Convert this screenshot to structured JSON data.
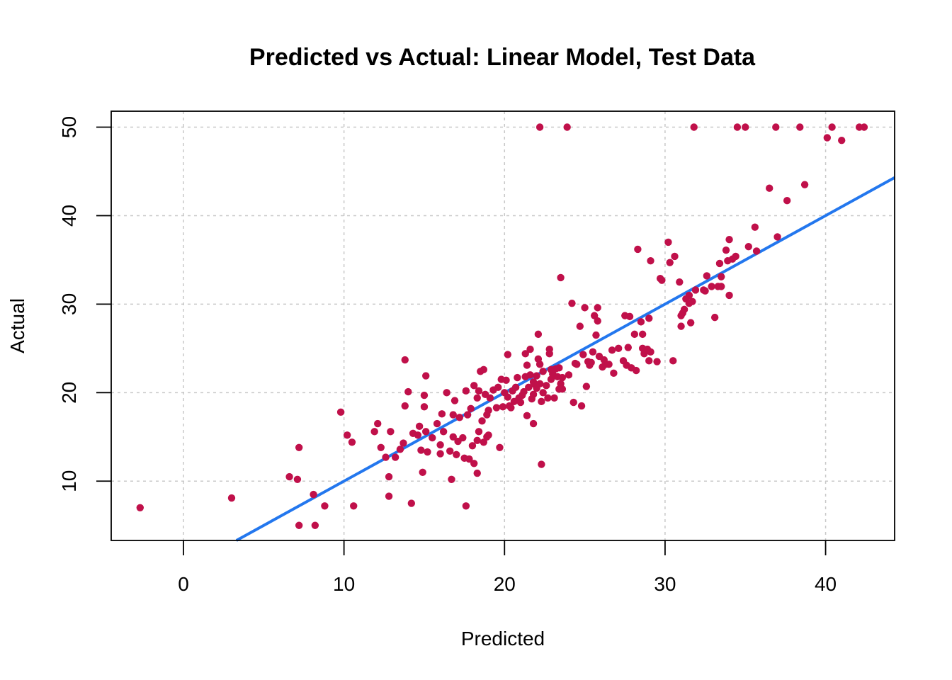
{
  "chart_data": {
    "type": "scatter",
    "title": "Predicted vs Actual: Linear Model, Test Data",
    "xlabel": "Predicted",
    "ylabel": "Actual",
    "xlim": [
      -4.5,
      44.3
    ],
    "ylim": [
      3.3,
      51.8
    ],
    "x_ticks": [
      0,
      10,
      20,
      30,
      40
    ],
    "y_ticks": [
      10,
      20,
      30,
      40,
      50
    ],
    "x_tick_labels": [
      "0",
      "10",
      "20",
      "30",
      "40"
    ],
    "y_tick_labels": [
      "10",
      "20",
      "30",
      "40",
      "50"
    ],
    "grid": true,
    "point_color": "#C0104A",
    "line_color": "#2377EE",
    "reference_line": {
      "slope": 1,
      "intercept": 0
    },
    "points": [
      [
        -2.7,
        7.0
      ],
      [
        3.0,
        8.1
      ],
      [
        6.6,
        10.5
      ],
      [
        7.1,
        10.2
      ],
      [
        7.2,
        13.8
      ],
      [
        7.2,
        5.0
      ],
      [
        8.1,
        8.5
      ],
      [
        8.2,
        5.0
      ],
      [
        8.8,
        7.2
      ],
      [
        9.8,
        17.8
      ],
      [
        10.2,
        15.2
      ],
      [
        10.5,
        14.4
      ],
      [
        10.6,
        7.2
      ],
      [
        11.9,
        15.6
      ],
      [
        12.1,
        16.5
      ],
      [
        12.3,
        13.8
      ],
      [
        12.6,
        12.7
      ],
      [
        12.8,
        10.5
      ],
      [
        12.8,
        8.3
      ],
      [
        12.9,
        15.6
      ],
      [
        13.2,
        12.7
      ],
      [
        13.5,
        13.6
      ],
      [
        13.7,
        14.3
      ],
      [
        13.8,
        18.5
      ],
      [
        13.8,
        23.7
      ],
      [
        14.0,
        20.1
      ],
      [
        14.2,
        7.5
      ],
      [
        14.3,
        15.4
      ],
      [
        14.6,
        15.2
      ],
      [
        14.7,
        16.2
      ],
      [
        14.8,
        13.5
      ],
      [
        14.9,
        11.0
      ],
      [
        15.0,
        18.4
      ],
      [
        15.0,
        19.7
      ],
      [
        15.1,
        21.9
      ],
      [
        15.1,
        15.6
      ],
      [
        15.2,
        13.3
      ],
      [
        15.5,
        14.9
      ],
      [
        15.8,
        16.5
      ],
      [
        16.0,
        13.1
      ],
      [
        16.0,
        14.1
      ],
      [
        16.1,
        17.6
      ],
      [
        16.2,
        15.6
      ],
      [
        16.4,
        20.0
      ],
      [
        16.6,
        13.4
      ],
      [
        16.7,
        10.2
      ],
      [
        16.8,
        15.0
      ],
      [
        16.8,
        17.5
      ],
      [
        16.9,
        19.1
      ],
      [
        17.0,
        13.0
      ],
      [
        17.1,
        14.5
      ],
      [
        17.2,
        17.2
      ],
      [
        17.4,
        14.9
      ],
      [
        17.5,
        12.6
      ],
      [
        17.6,
        20.2
      ],
      [
        17.6,
        7.2
      ],
      [
        17.7,
        17.5
      ],
      [
        17.8,
        12.5
      ],
      [
        17.9,
        18.2
      ],
      [
        18.0,
        14.0
      ],
      [
        18.1,
        12.0
      ],
      [
        18.1,
        20.8
      ],
      [
        18.3,
        19.4
      ],
      [
        18.3,
        14.6
      ],
      [
        18.3,
        10.9
      ],
      [
        18.4,
        20.2
      ],
      [
        18.4,
        15.6
      ],
      [
        18.5,
        22.4
      ],
      [
        18.6,
        16.8
      ],
      [
        18.7,
        22.6
      ],
      [
        18.7,
        14.4
      ],
      [
        18.8,
        19.8
      ],
      [
        18.9,
        17.5
      ],
      [
        18.9,
        15.0
      ],
      [
        19.0,
        18.0
      ],
      [
        19.0,
        15.2
      ],
      [
        19.1,
        19.4
      ],
      [
        19.3,
        20.3
      ],
      [
        19.5,
        18.3
      ],
      [
        19.6,
        20.6
      ],
      [
        19.7,
        13.8
      ],
      [
        19.8,
        21.5
      ],
      [
        19.9,
        18.4
      ],
      [
        20.0,
        20.0
      ],
      [
        20.1,
        21.4
      ],
      [
        20.2,
        19.5
      ],
      [
        20.2,
        24.3
      ],
      [
        20.3,
        18.5
      ],
      [
        20.4,
        18.3
      ],
      [
        20.5,
        20.2
      ],
      [
        20.6,
        19.0
      ],
      [
        20.7,
        20.6
      ],
      [
        20.8,
        21.7
      ],
      [
        20.9,
        19.4
      ],
      [
        21.0,
        18.9
      ],
      [
        21.1,
        19.7
      ],
      [
        21.2,
        20.1
      ],
      [
        21.3,
        21.8
      ],
      [
        21.3,
        24.4
      ],
      [
        21.4,
        23.1
      ],
      [
        21.4,
        17.4
      ],
      [
        21.5,
        20.6
      ],
      [
        21.6,
        22.0
      ],
      [
        21.6,
        24.9
      ],
      [
        21.7,
        19.3
      ],
      [
        21.8,
        21.2
      ],
      [
        21.8,
        19.8
      ],
      [
        21.8,
        16.5
      ],
      [
        21.9,
        20.9
      ],
      [
        22.0,
        21.9
      ],
      [
        22.0,
        20.5
      ],
      [
        22.1,
        26.6
      ],
      [
        22.1,
        23.8
      ],
      [
        22.2,
        21.0
      ],
      [
        22.2,
        23.2
      ],
      [
        22.2,
        50.0
      ],
      [
        22.3,
        11.9
      ],
      [
        22.3,
        19.0
      ],
      [
        22.4,
        20.0
      ],
      [
        22.4,
        22.4
      ],
      [
        22.6,
        20.8
      ],
      [
        22.7,
        19.4
      ],
      [
        22.8,
        24.9
      ],
      [
        22.8,
        24.4
      ],
      [
        22.9,
        21.5
      ],
      [
        22.9,
        22.6
      ],
      [
        23.0,
        22.1
      ],
      [
        23.1,
        19.4
      ],
      [
        23.2,
        22.7
      ],
      [
        23.3,
        21.8
      ],
      [
        23.4,
        20.4
      ],
      [
        23.4,
        22.8
      ],
      [
        23.5,
        33.0
      ],
      [
        23.5,
        21.0
      ],
      [
        23.6,
        20.4
      ],
      [
        23.6,
        21.7
      ],
      [
        23.9,
        50.0
      ],
      [
        24.0,
        22.0
      ],
      [
        24.2,
        30.1
      ],
      [
        24.3,
        18.9
      ],
      [
        24.4,
        23.3
      ],
      [
        24.5,
        23.2
      ],
      [
        24.7,
        27.5
      ],
      [
        24.8,
        18.5
      ],
      [
        24.9,
        24.3
      ],
      [
        25.0,
        29.6
      ],
      [
        25.1,
        20.7
      ],
      [
        25.2,
        23.5
      ],
      [
        25.3,
        23.1
      ],
      [
        25.4,
        23.4
      ],
      [
        25.5,
        24.6
      ],
      [
        25.6,
        28.7
      ],
      [
        25.7,
        26.5
      ],
      [
        25.8,
        28.1
      ],
      [
        25.8,
        29.6
      ],
      [
        25.9,
        24.1
      ],
      [
        26.1,
        22.9
      ],
      [
        26.2,
        23.7
      ],
      [
        26.3,
        23.2
      ],
      [
        26.5,
        23.2
      ],
      [
        26.7,
        24.8
      ],
      [
        26.8,
        22.2
      ],
      [
        27.1,
        25.0
      ],
      [
        27.4,
        23.6
      ],
      [
        27.5,
        28.7
      ],
      [
        27.6,
        23.1
      ],
      [
        27.7,
        25.1
      ],
      [
        27.8,
        28.6
      ],
      [
        27.9,
        22.8
      ],
      [
        28.1,
        26.6
      ],
      [
        28.2,
        22.5
      ],
      [
        28.3,
        36.2
      ],
      [
        28.5,
        28.0
      ],
      [
        28.6,
        26.6
      ],
      [
        28.6,
        25.0
      ],
      [
        28.7,
        24.4
      ],
      [
        28.9,
        24.9
      ],
      [
        29.0,
        23.6
      ],
      [
        29.0,
        28.4
      ],
      [
        29.1,
        24.6
      ],
      [
        29.1,
        34.9
      ],
      [
        29.5,
        23.5
      ],
      [
        29.7,
        32.9
      ],
      [
        29.8,
        32.7
      ],
      [
        30.2,
        37.0
      ],
      [
        30.3,
        34.7
      ],
      [
        30.5,
        23.6
      ],
      [
        30.6,
        35.4
      ],
      [
        30.9,
        32.5
      ],
      [
        31.0,
        27.5
      ],
      [
        31.0,
        28.7
      ],
      [
        31.1,
        29.0
      ],
      [
        31.2,
        29.4
      ],
      [
        31.3,
        30.6
      ],
      [
        31.5,
        31.0
      ],
      [
        31.5,
        30.1
      ],
      [
        31.6,
        27.9
      ],
      [
        31.7,
        30.3
      ],
      [
        31.8,
        50.0
      ],
      [
        31.9,
        31.6
      ],
      [
        32.4,
        31.6
      ],
      [
        32.5,
        31.5
      ],
      [
        32.6,
        33.2
      ],
      [
        32.9,
        32.0
      ],
      [
        33.1,
        28.5
      ],
      [
        33.3,
        32.0
      ],
      [
        33.4,
        34.6
      ],
      [
        33.5,
        33.1
      ],
      [
        33.5,
        32.0
      ],
      [
        33.8,
        36.1
      ],
      [
        33.9,
        34.9
      ],
      [
        34.0,
        37.3
      ],
      [
        34.0,
        31.0
      ],
      [
        34.2,
        35.1
      ],
      [
        34.4,
        35.4
      ],
      [
        34.5,
        50.0
      ],
      [
        35.0,
        50.0
      ],
      [
        35.2,
        36.5
      ],
      [
        35.6,
        38.7
      ],
      [
        35.7,
        36.0
      ],
      [
        36.5,
        43.1
      ],
      [
        36.9,
        50.0
      ],
      [
        37.0,
        37.6
      ],
      [
        37.6,
        41.7
      ],
      [
        38.4,
        50.0
      ],
      [
        38.7,
        43.5
      ],
      [
        40.1,
        48.8
      ],
      [
        40.4,
        50.0
      ],
      [
        41.0,
        48.5
      ],
      [
        42.1,
        50.0
      ],
      [
        42.4,
        50.0
      ]
    ]
  }
}
